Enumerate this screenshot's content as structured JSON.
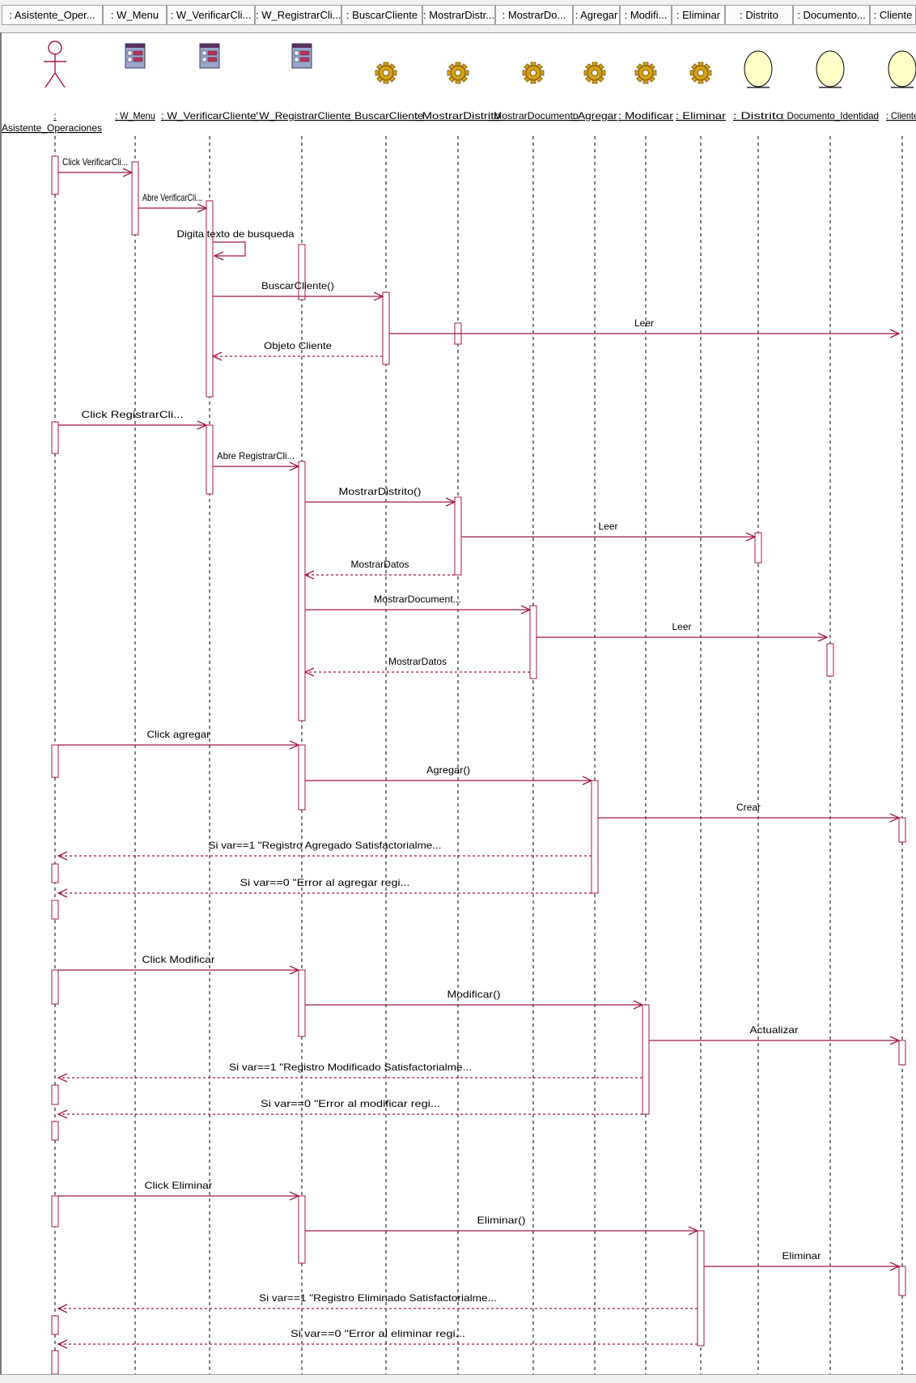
{
  "header": {
    "cells": [
      ": Asistente_Oper...",
      ": W_Menu",
      ": W_VerificarCli...",
      ": W_RegistrarCli...",
      ": BuscarCliente",
      ": MostrarDistr...",
      ": MostrarDo...",
      ": Agregar",
      ": Modifi...",
      ": Eliminar",
      ": Distrito",
      ": Documento...",
      ": Cliente"
    ]
  },
  "participants": [
    {
      "id": "actor",
      "kind": "actor",
      "label_line1": ":",
      "label_line2": "Asistente_Operaciones"
    },
    {
      "id": "wmenu",
      "kind": "form",
      "label": ": W_Menu"
    },
    {
      "id": "wverificar",
      "kind": "form",
      "label": ": W_VerificarCliente'"
    },
    {
      "id": "wregistrar",
      "kind": "form",
      "label": ": W_RegistrarCliente"
    },
    {
      "id": "buscar",
      "kind": "control",
      "label": ": BuscarCliente"
    },
    {
      "id": "mdistrito",
      "kind": "control",
      "label": ": MostrarDistrito"
    },
    {
      "id": "mdocumento",
      "kind": "control",
      "label": ": MostrarDocumento"
    },
    {
      "id": "agregar",
      "kind": "control",
      "label": ": Agregar"
    },
    {
      "id": "modificar",
      "kind": "control",
      "label": ": Modificar"
    },
    {
      "id": "eliminar",
      "kind": "control",
      "label": ": Eliminar"
    },
    {
      "id": "distrito",
      "kind": "entity",
      "label": ": Distrito"
    },
    {
      "id": "documento",
      "kind": "entity",
      "label": ": Documento_Identidad"
    },
    {
      "id": "cliente",
      "kind": "entity",
      "label": ": Cliente"
    }
  ],
  "messages": [
    {
      "from": "actor",
      "to": "wmenu",
      "label": "Click VerificarCli...",
      "type": "sync"
    },
    {
      "from": "wmenu",
      "to": "wverificar",
      "label": "Abre VerificarCli...",
      "type": "sync"
    },
    {
      "from": "wverificar",
      "to": "wverificar",
      "label": "Digita texto de busqueda",
      "type": "self"
    },
    {
      "from": "wverificar",
      "to": "buscar",
      "label": "BuscarCliente()",
      "type": "sync"
    },
    {
      "from": "buscar",
      "to": "cliente",
      "label": "Leer",
      "type": "sync"
    },
    {
      "from": "buscar",
      "to": "wverificar",
      "label": "Objeto Cliente",
      "type": "return"
    },
    {
      "from": "actor",
      "to": "wverificar",
      "label": "Click RegistrarCli...",
      "type": "sync"
    },
    {
      "from": "wverificar",
      "to": "wregistrar",
      "label": "Abre RegistrarCli...",
      "type": "sync"
    },
    {
      "from": "wregistrar",
      "to": "mdistrito",
      "label": "MostrarDistrito()",
      "type": "sync"
    },
    {
      "from": "mdistrito",
      "to": "distrito",
      "label": "Leer",
      "type": "sync"
    },
    {
      "from": "mdistrito",
      "to": "wregistrar",
      "label": "MostrarDatos",
      "type": "return"
    },
    {
      "from": "wregistrar",
      "to": "mdocumento",
      "label": "MostrarDocument...",
      "type": "sync"
    },
    {
      "from": "mdocumento",
      "to": "documento",
      "label": "Leer",
      "type": "sync"
    },
    {
      "from": "mdocumento",
      "to": "wregistrar",
      "label": "MostrarDatos",
      "type": "return"
    },
    {
      "from": "actor",
      "to": "wregistrar",
      "label": "Click agregar",
      "type": "sync"
    },
    {
      "from": "wregistrar",
      "to": "agregar",
      "label": "Agregar()",
      "type": "sync"
    },
    {
      "from": "agregar",
      "to": "cliente",
      "label": "Crear",
      "type": "sync"
    },
    {
      "from": "agregar",
      "to": "actor",
      "label": "Si var==1 \"Registro Agregado Satisfactorialme...",
      "type": "return"
    },
    {
      "from": "agregar",
      "to": "actor",
      "label": "Si var==0 \"Error al agregar regi...",
      "type": "return"
    },
    {
      "from": "actor",
      "to": "wregistrar",
      "label": "Click Modificar",
      "type": "sync"
    },
    {
      "from": "wregistrar",
      "to": "modificar",
      "label": "Modificar()",
      "type": "sync"
    },
    {
      "from": "modificar",
      "to": "cliente",
      "label": "Actualizar",
      "type": "sync"
    },
    {
      "from": "modificar",
      "to": "actor",
      "label": "Si var==1 \"Registro Modificado Satisfactorialme...",
      "type": "return"
    },
    {
      "from": "modificar",
      "to": "actor",
      "label": "Si var==0 \"Error al modificar regi...",
      "type": "return"
    },
    {
      "from": "actor",
      "to": "wregistrar",
      "label": "Click Eliminar",
      "type": "sync"
    },
    {
      "from": "wregistrar",
      "to": "eliminar",
      "label": "Eliminar()",
      "type": "sync"
    },
    {
      "from": "eliminar",
      "to": "cliente",
      "label": "Eliminar",
      "type": "sync"
    },
    {
      "from": "eliminar",
      "to": "actor",
      "label": "Si var==1 \"Registro Eliminado Satisfactorialme...",
      "type": "return"
    },
    {
      "from": "eliminar",
      "to": "actor",
      "label": "Si var==0 \"Error al eliminar regi...",
      "type": "return"
    }
  ],
  "colors": {
    "message": "#a0184a",
    "activation_fill": "#ffffff",
    "activation_stroke": "#a0184a",
    "lifeline": "#000000",
    "entity_fill": "#ffffc8",
    "control_fill": "#d4a017",
    "form_fill": "#9aa6c8"
  }
}
